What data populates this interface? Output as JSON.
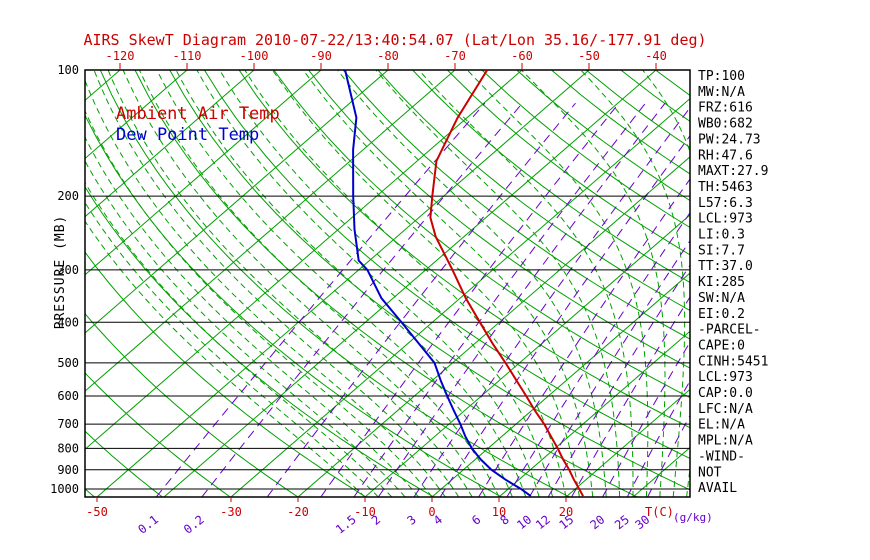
{
  "title": "AIRS SkewT Diagram 2010-07-22/13:40:54.07 (Lat/Lon 35.16/-177.91 deg)",
  "legend": {
    "ambient_label": "Ambient Air Temp",
    "dewpoint_label": "Dew Point Temp"
  },
  "colors": {
    "title_red": "#cc0000",
    "temperature_red": "#cc0000",
    "dewpoint_blue": "#0000cc",
    "grid_green": "#00a000",
    "mixing_violet": "#6600cc",
    "axis_black": "#000000",
    "background_white": "#ffffff"
  },
  "chart_data": {
    "type": "line",
    "variant": "skewt-log-p",
    "title": "AIRS SkewT Diagram 2010-07-22/13:40:54.07 (Lat/Lon 35.16/-177.91 deg)",
    "ylabel": "PRESSURE (MB)",
    "y_scale": "log",
    "y_ticks_mb": [
      100,
      200,
      300,
      400,
      500,
      600,
      700,
      800,
      900,
      1000
    ],
    "pressure_range_mb": [
      100,
      1045
    ],
    "x_unit_label": "T(C)",
    "mixing_unit_label": "(g/kg)",
    "x_ticks_top_c": [
      -120,
      -110,
      -100,
      -90,
      -80,
      -70,
      -60,
      -50,
      -40
    ],
    "x_ticks_bottom_c": [
      -50,
      -30,
      -20,
      -10,
      0,
      10,
      20
    ],
    "mixing_ratio_tick_labels_gkg": [
      0.1,
      0.2,
      1.5,
      2,
      3,
      4,
      6,
      8,
      10,
      12,
      15,
      20,
      25,
      30
    ],
    "series": [
      {
        "name": "Ambient Air Temp",
        "color": "#cc0000",
        "points_p_mb_t_c": [
          [
            1040,
            22.4
          ],
          [
            1000,
            20.6
          ],
          [
            950,
            18.2
          ],
          [
            900,
            15.8
          ],
          [
            850,
            13.1
          ],
          [
            800,
            10.4
          ],
          [
            750,
            7.4
          ],
          [
            700,
            4.2
          ],
          [
            650,
            0.5
          ],
          [
            600,
            -3.3
          ],
          [
            550,
            -7.5
          ],
          [
            500,
            -12.1
          ],
          [
            450,
            -17.3
          ],
          [
            400,
            -22.9
          ],
          [
            350,
            -29.2
          ],
          [
            300,
            -36.0
          ],
          [
            250,
            -44.2
          ],
          [
            225,
            -48.3
          ],
          [
            200,
            -51.7
          ],
          [
            165,
            -57.1
          ],
          [
            130,
            -61.4
          ],
          [
            100,
            -65.2
          ]
        ]
      },
      {
        "name": "Dew Point Temp",
        "color": "#0000cc",
        "points_p_mb_t_c": [
          [
            1040,
            14.6
          ],
          [
            1000,
            11.9
          ],
          [
            950,
            8.0
          ],
          [
            900,
            4.2
          ],
          [
            850,
            0.8
          ],
          [
            800,
            -2.4
          ],
          [
            750,
            -5.4
          ],
          [
            700,
            -8.3
          ],
          [
            650,
            -11.6
          ],
          [
            600,
            -15.1
          ],
          [
            550,
            -18.8
          ],
          [
            500,
            -22.7
          ],
          [
            450,
            -28.3
          ],
          [
            400,
            -34.6
          ],
          [
            350,
            -41.8
          ],
          [
            300,
            -48.7
          ],
          [
            285,
            -51.6
          ],
          [
            240,
            -57.6
          ],
          [
            200,
            -63.5
          ],
          [
            155,
            -71.5
          ],
          [
            130,
            -76.5
          ],
          [
            100,
            -86.4
          ]
        ]
      }
    ],
    "background_lines": {
      "isotherms_c": {
        "min": -120,
        "max": 40,
        "step": 10
      },
      "dry_adiabats_theta_k": {
        "min": 220,
        "max": 460,
        "step": 10
      },
      "moist_adiabats_start_c": {
        "min": -10,
        "max": 38,
        "step": 2
      },
      "mixing_ratio_lines_gkg": [
        0.1,
        0.2,
        0.5,
        1,
        1.5,
        2,
        3,
        4,
        6,
        8,
        10,
        12,
        15,
        20,
        25,
        30
      ]
    }
  },
  "stats_panel": {
    "lines": [
      "TP:100",
      "MW:N/A",
      "FRZ:616",
      "WB0:682",
      "PW:24.73",
      "RH:47.6",
      "MAXT:27.9",
      "TH:5463",
      "L57:6.3",
      "LCL:973",
      "LI:0.3",
      "SI:7.7",
      "TT:37.0",
      "KI:285",
      "SW:N/A",
      "EI:0.2",
      "-PARCEL-",
      "CAPE:0",
      "CINH:5451",
      "LCL:973",
      "CAP:0.0",
      "LFC:N/A",
      "EL:N/A",
      "MPL:N/A",
      "-WIND-",
      "NOT",
      "AVAIL"
    ]
  }
}
